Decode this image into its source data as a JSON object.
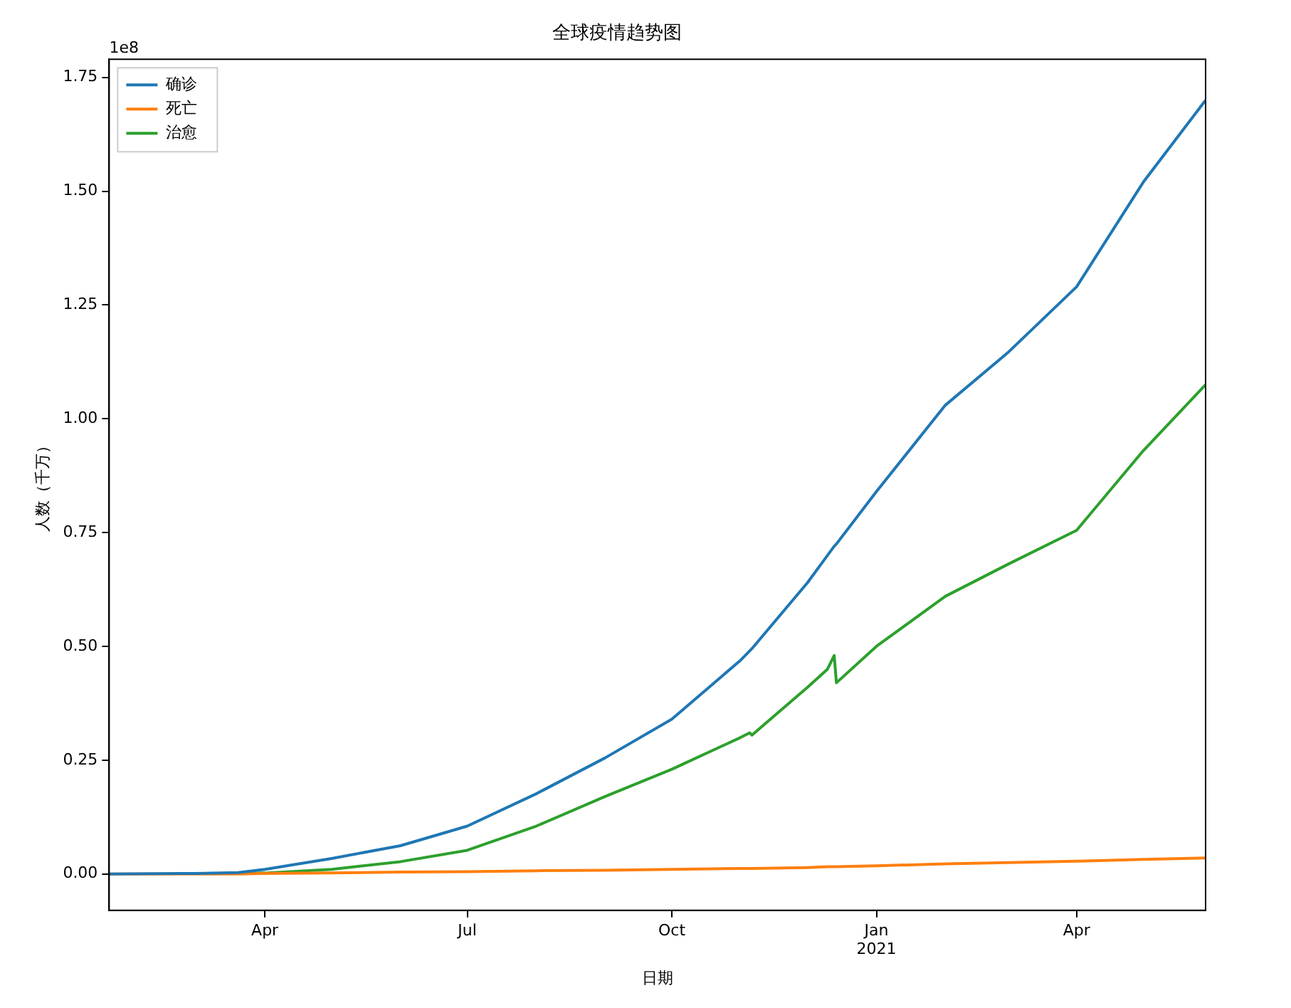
{
  "chart_data": {
    "type": "line",
    "title": "全球疫情趋势图",
    "xlabel": "日期",
    "ylabel": "人数（千万）",
    "annotations": [
      "1e8"
    ],
    "x": [
      "2020-01-22",
      "2020-03-01",
      "2020-03-20",
      "2020-04-01",
      "2020-05-01",
      "2020-06-01",
      "2020-07-01",
      "2020-08-01",
      "2020-09-01",
      "2020-10-01",
      "2020-11-01",
      "2020-11-05",
      "2020-11-06",
      "2020-12-01",
      "2020-12-10",
      "2020-12-13",
      "2020-12-14",
      "2021-01-01",
      "2021-02-01",
      "2021-03-01",
      "2021-04-01",
      "2021-05-01",
      "2021-05-29"
    ],
    "series": [
      {
        "name": "确诊",
        "color": "#1f77b4",
        "values": [
          0.0,
          0.001,
          0.003,
          0.01,
          0.034,
          0.062,
          0.105,
          0.176,
          0.255,
          0.34,
          0.47,
          0.49,
          0.495,
          0.64,
          0.7,
          0.72,
          0.725,
          0.84,
          1.03,
          1.145,
          1.29,
          1.52,
          1.7
        ]
      },
      {
        "name": "死亡",
        "color": "#ff7f0e",
        "values": [
          0.0,
          0.0,
          0.0,
          0.001,
          0.002,
          0.004,
          0.005,
          0.007,
          0.008,
          0.01,
          0.012,
          0.012,
          0.012,
          0.014,
          0.016,
          0.016,
          0.016,
          0.018,
          0.022,
          0.025,
          0.028,
          0.032,
          0.035
        ]
      },
      {
        "name": "治愈",
        "color": "#2ca02c",
        "values": [
          null,
          null,
          0.001,
          0.002,
          0.01,
          0.027,
          0.052,
          0.105,
          0.17,
          0.23,
          0.3,
          0.31,
          0.305,
          0.41,
          0.45,
          0.48,
          0.42,
          0.5,
          0.61,
          0.68,
          0.755,
          0.93,
          1.075
        ]
      }
    ],
    "xlim": [
      "2020-01-22",
      "2021-05-29"
    ],
    "xticks": [
      {
        "value": "2020-04-01",
        "label": "Apr"
      },
      {
        "value": "2020-07-01",
        "label": "Jul"
      },
      {
        "value": "2020-10-01",
        "label": "Oct"
      },
      {
        "value": "2021-01-01",
        "label": "Jan\n2021"
      },
      {
        "value": "2021-04-01",
        "label": "Apr"
      }
    ],
    "ylim": [
      -0.08,
      1.79
    ],
    "yticks": [
      {
        "value": 0,
        "label": "0.00"
      },
      {
        "value": 0.25,
        "label": "0.25"
      },
      {
        "value": 0.5,
        "label": "0.50"
      },
      {
        "value": 0.75,
        "label": "0.75"
      },
      {
        "value": 1,
        "label": "1.00"
      },
      {
        "value": 1.25,
        "label": "1.25"
      },
      {
        "value": 1.5,
        "label": "1.50"
      },
      {
        "value": 1.75,
        "label": "1.75"
      }
    ],
    "legend": "top left",
    "grid": false,
    "marker": "none",
    "line_style": "solid"
  }
}
